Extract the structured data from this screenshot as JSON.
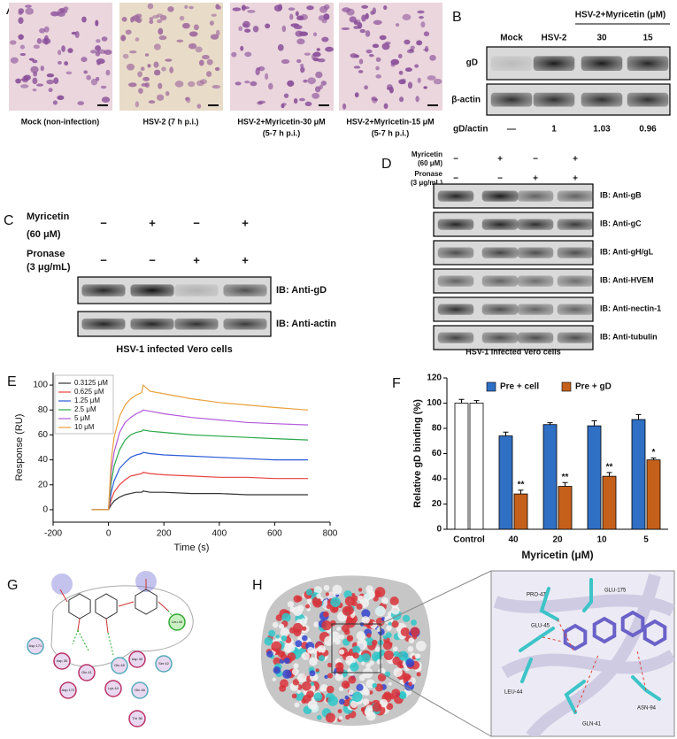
{
  "panel_a": {
    "label": "A",
    "captions": [
      [
        "Mock (non-infection)"
      ],
      [
        "HSV-2 (7 h p.i.)"
      ],
      [
        "HSV-2+Myricetin-30 μM",
        "(5-7 h p.i.)"
      ],
      [
        "HSV-2+Myricetin-15 μM",
        "(5-7 h p.i.)"
      ]
    ]
  },
  "panel_b": {
    "label": "B",
    "group_header": "HSV-2+Myricetin (μM)",
    "columns": [
      "Mock",
      "HSV-2",
      "30",
      "15"
    ],
    "blots": [
      "gD",
      "β-actin"
    ],
    "ratio_label": "gD/actin",
    "ratios": [
      "—",
      1,
      1.03,
      0.96
    ]
  },
  "panel_c": {
    "label": "C",
    "treatments": [
      {
        "name": [
          "Myricetin",
          "(60 μM)"
        ],
        "signs": [
          "−",
          "+",
          "−",
          "+"
        ]
      },
      {
        "name": [
          "Pronase",
          "(3 μg/mL)"
        ],
        "signs": [
          "−",
          "−",
          "+",
          "+"
        ]
      }
    ],
    "blots": [
      "IB: Anti-gD",
      "IB: Anti-actin"
    ],
    "caption": "HSV-1 infected Vero cells"
  },
  "panel_d": {
    "label": "D",
    "treatments": [
      {
        "name": [
          "Myricetin",
          "(60 μM)"
        ],
        "signs": [
          "−",
          "+",
          "−",
          "+"
        ]
      },
      {
        "name": [
          "Pronase",
          "(3 μg/mL)"
        ],
        "signs": [
          "−",
          "−",
          "+",
          "+"
        ]
      }
    ],
    "blots": [
      "IB: Anti-gB",
      "IB: Anti-gC",
      "IB: Anti-gH/gL",
      "IB: Anti-HVEM",
      "IB: Anti-nectin-1",
      "IB: Anti-tubulin"
    ],
    "caption": "HSV-1 infected Vero cells"
  },
  "chart_data": [
    {
      "type": "line",
      "panel_label": "E",
      "x_label": "Time (s)",
      "y_label": "Response (RU)",
      "x": [
        -60,
        -20,
        0,
        10,
        20,
        40,
        60,
        80,
        100,
        120,
        125,
        150,
        200,
        300,
        400,
        500,
        600,
        720
      ],
      "series": [
        {
          "name": "0.3125 μM",
          "color": "#333333",
          "values": [
            0,
            0,
            0,
            4,
            7,
            10,
            12,
            13,
            14,
            14,
            15,
            14,
            14,
            13,
            13,
            12,
            12,
            12
          ]
        },
        {
          "name": "0.625 μM",
          "color": "#e8413c",
          "values": [
            0,
            0,
            0,
            8,
            14,
            20,
            24,
            27,
            28,
            29,
            30,
            29,
            28,
            27,
            26,
            26,
            25,
            25
          ]
        },
        {
          "name": "1.25 μM",
          "color": "#2a5bd7",
          "values": [
            0,
            0,
            0,
            14,
            23,
            33,
            38,
            42,
            44,
            45,
            46,
            45,
            44,
            43,
            42,
            41,
            40,
            40
          ]
        },
        {
          "name": "2.5 μM",
          "color": "#2aa84a",
          "values": [
            0,
            0,
            0,
            22,
            35,
            48,
            56,
            60,
            62,
            63,
            64,
            63,
            62,
            60,
            59,
            58,
            57,
            56
          ]
        },
        {
          "name": "5 μM",
          "color": "#b25ad9",
          "values": [
            0,
            0,
            0,
            30,
            46,
            62,
            70,
            74,
            77,
            79,
            80,
            79,
            77,
            74,
            72,
            70,
            69,
            68
          ]
        },
        {
          "name": "10 μM",
          "color": "#e8a13c",
          "values": [
            0,
            0,
            0,
            40,
            58,
            75,
            84,
            89,
            92,
            94,
            100,
            95,
            93,
            89,
            86,
            84,
            82,
            80
          ]
        }
      ],
      "xlim": [
        -200,
        800
      ],
      "xticks": [
        -200,
        0,
        200,
        400,
        600,
        800
      ],
      "ylim": [
        -10,
        110
      ],
      "yticks": [
        0,
        20,
        40,
        60,
        80,
        100
      ],
      "legend": "top-left"
    },
    {
      "type": "bar",
      "panel_label": "F",
      "x_label": "Myricetin (μM)",
      "y_label": "Relative gD binding (%)",
      "categories": [
        "Control",
        "40",
        "20",
        "10",
        "5"
      ],
      "series": [
        {
          "name": "Pre + cell",
          "color": "#2f6fc4",
          "colors": [
            "#ffffff",
            "#2f6fc4",
            "#2f6fc4",
            "#2f6fc4",
            "#2f6fc4"
          ],
          "values": [
            100,
            74,
            83,
            82,
            87
          ],
          "errors": [
            3,
            3,
            1.5,
            4,
            4
          ]
        },
        {
          "name": "Pre + gD",
          "color": "#c5601a",
          "colors": [
            "#ffffff",
            "#c5601a",
            "#c5601a",
            "#c5601a",
            "#c5601a"
          ],
          "values": [
            100,
            28,
            34,
            42,
            55
          ],
          "errors": [
            2,
            3,
            3,
            3,
            1.5
          ],
          "significance": [
            null,
            "**",
            "**",
            "**",
            "*"
          ]
        }
      ],
      "ylim": [
        0,
        120
      ],
      "yticks": [
        0,
        20,
        40,
        60,
        80,
        100,
        120
      ],
      "legend": "top"
    }
  ],
  "panel_g": {
    "label": "G",
    "residues": [
      "Asp 171",
      "Asp 30",
      "Gln 41",
      "Glu 45",
      "Asp 40",
      "Leu 44",
      "Ser 42",
      "Asp 172",
      "Lys 44",
      "Gln 46",
      "Thr 36"
    ]
  },
  "panel_h": {
    "label": "H",
    "residues": [
      "PRO-47",
      "GLU-175",
      "GLU-45",
      "LEU-44",
      "GLN-41",
      "ASN-94"
    ]
  }
}
